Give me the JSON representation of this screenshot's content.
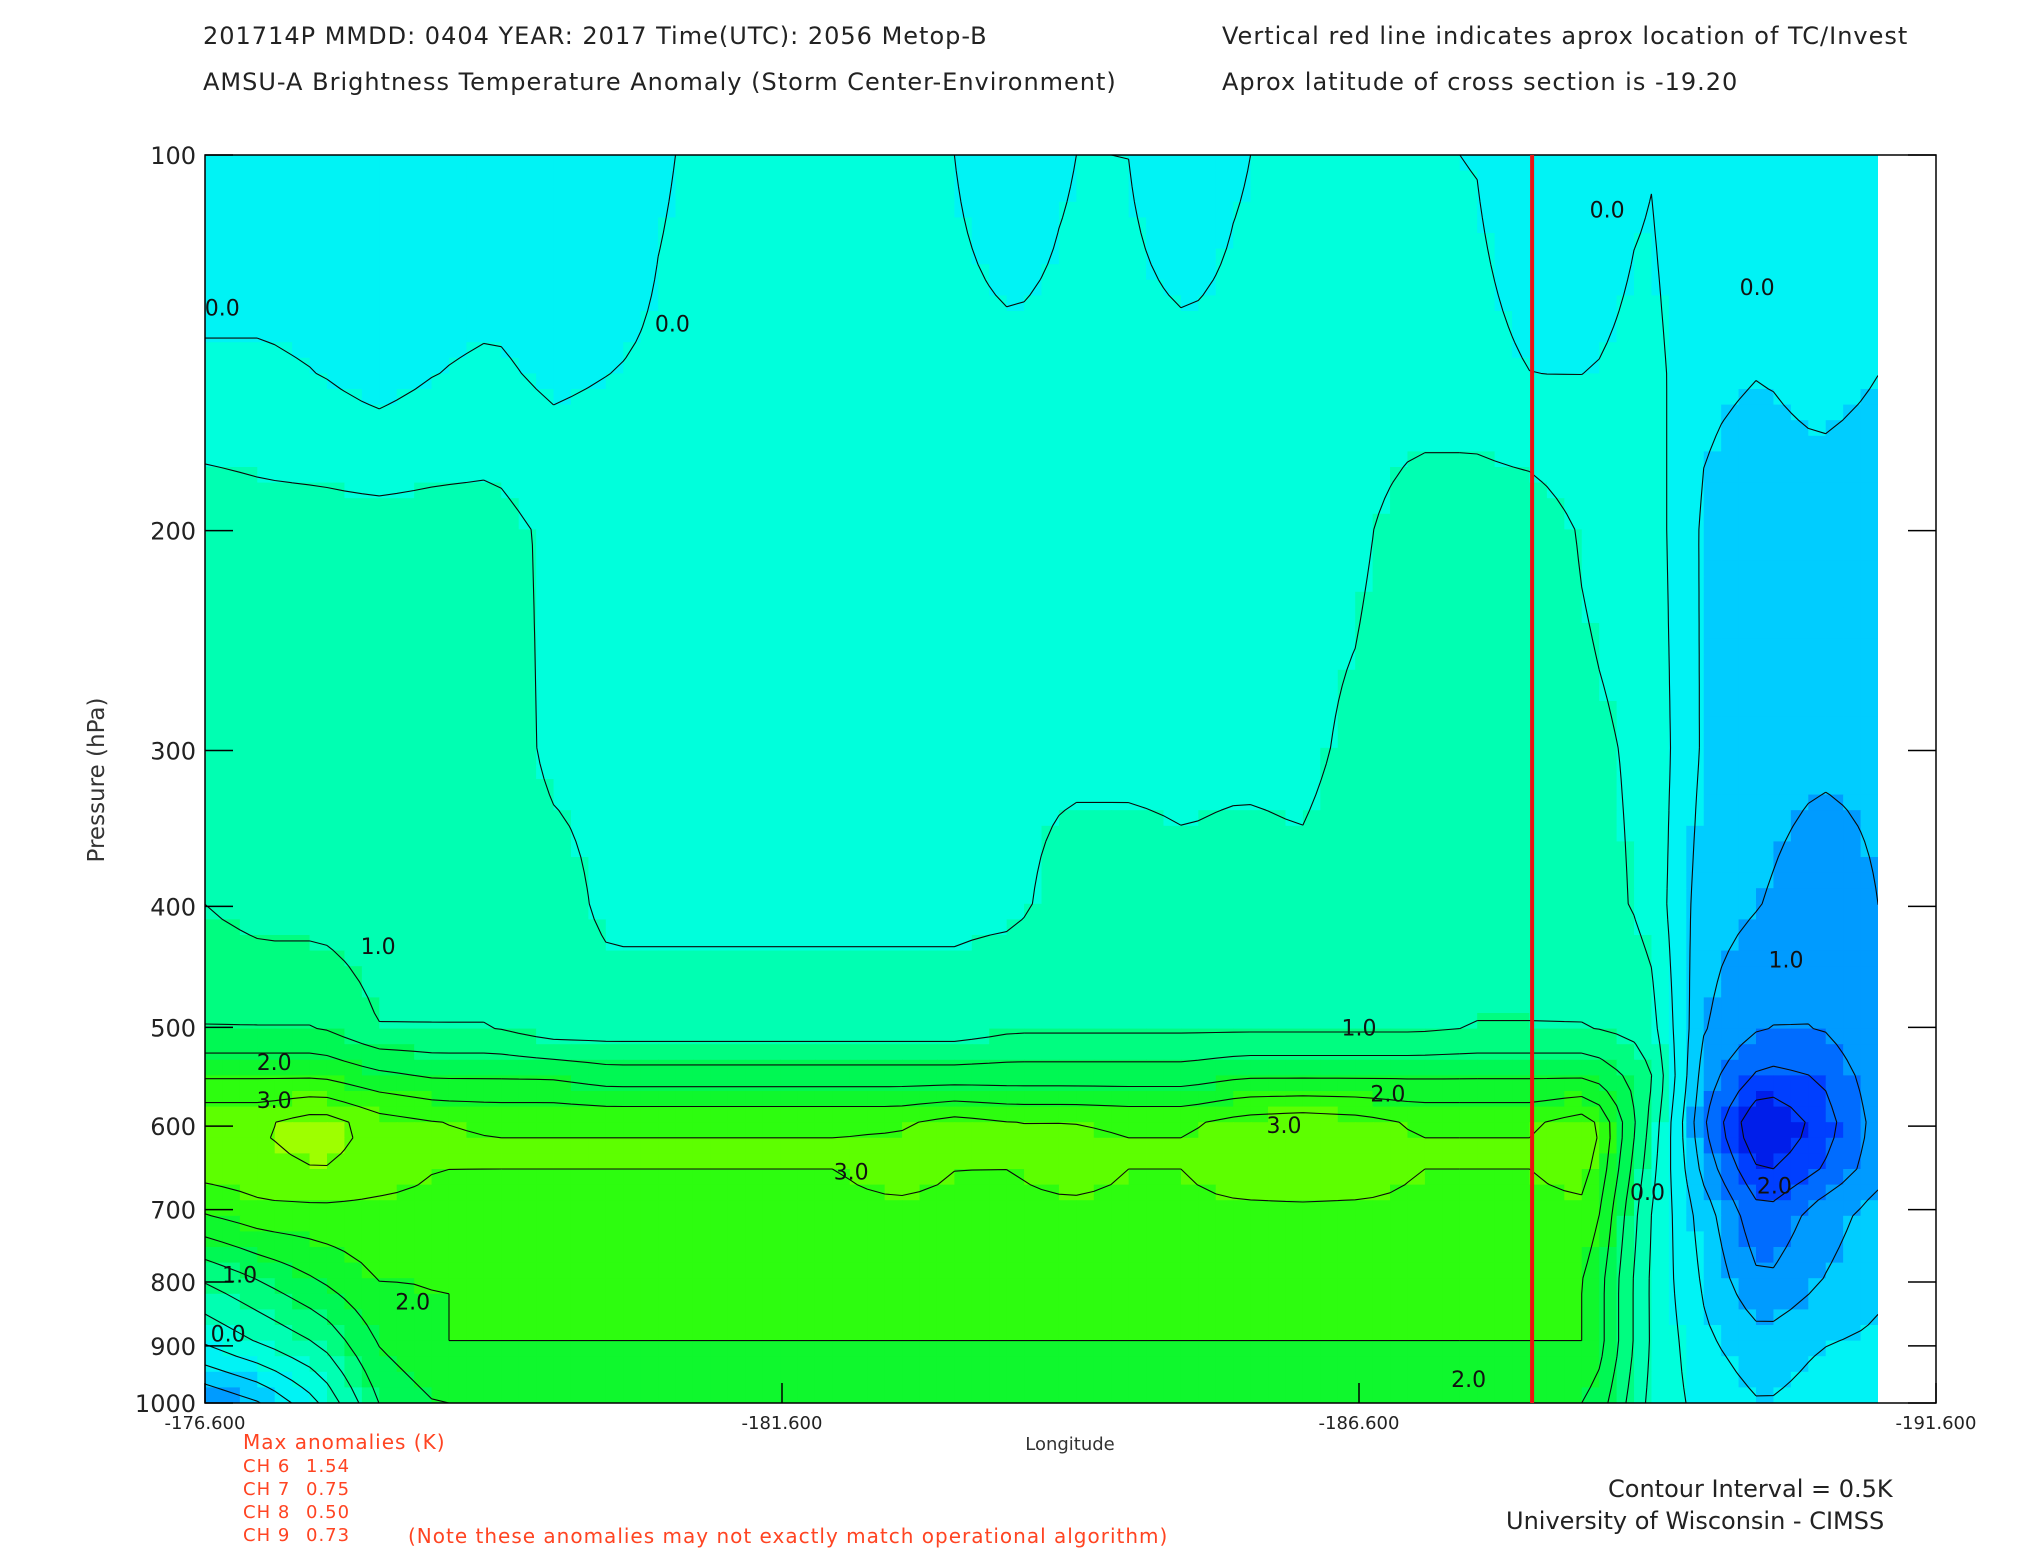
{
  "header": {
    "line1_left": "201714P  MMDD: 0404  YEAR: 2017  Time(UTC): 2056  Metop-B",
    "line1_right": "Vertical red line indicates aprox location of TC/Invest",
    "line2_left": "AMSU-A Brightness Temperature Anomaly (Storm Center-Environment)",
    "line2_right": "Aprox latitude of cross section is -19.20"
  },
  "footer": {
    "contour_interval": "Contour Interval = 0.5K",
    "institution": "University of Wisconsin - CIMSS"
  },
  "anomalies": {
    "title": "Max anomalies (K)",
    "channels": [
      {
        "label": "CH 6",
        "value": "1.54"
      },
      {
        "label": "CH 7",
        "value": "0.75"
      },
      {
        "label": "CH 8",
        "value": "0.50"
      },
      {
        "label": "CH 9",
        "value": "0.73"
      }
    ],
    "note": "(Note these anomalies may not exactly match operational algorithm)"
  },
  "colors": {
    "text": "#222222",
    "annotation": "#ff4422",
    "storm_line": "#ee1111"
  },
  "chart_data": {
    "type": "heatmap",
    "title": "AMSU-A Brightness Temperature Anomaly (Storm Center-Environment)",
    "xlabel": "Longitude",
    "ylabel": "Pressure (hPa)",
    "x_ticks": [
      -176.6,
      -181.6,
      -186.6,
      -191.6
    ],
    "x_tick_labels": [
      "-176.600",
      "-181.600",
      "-186.600",
      "-191.600"
    ],
    "xlim": [
      -176.6,
      -191.6
    ],
    "y_ticks": [
      100,
      200,
      300,
      400,
      500,
      600,
      700,
      800,
      900,
      1000
    ],
    "y_tick_labels": [
      "100",
      "200",
      "300",
      "400",
      "500",
      "600",
      "700",
      "800",
      "900",
      "1000"
    ],
    "ylim": [
      1000,
      100
    ],
    "y_scale": "log",
    "data_xlim": [
      -176.6,
      -191.1
    ],
    "storm_longitude": -188.1,
    "contour_interval": 0.5,
    "contour_labels": [
      {
        "text": "0.0",
        "lon": -176.75,
        "p": 133
      },
      {
        "text": "0.0",
        "lon": -180.65,
        "p": 137
      },
      {
        "text": "0.0",
        "lon": -188.75,
        "p": 111
      },
      {
        "text": "0.0",
        "lon": -190.05,
        "p": 128
      },
      {
        "text": "1.0",
        "lon": -178.1,
        "p": 432
      },
      {
        "text": "1.0",
        "lon": -186.6,
        "p": 502
      },
      {
        "text": "1.0",
        "lon": -190.3,
        "p": 443
      },
      {
        "text": "1.0",
        "lon": -176.9,
        "p": 792
      },
      {
        "text": "2.0",
        "lon": -177.2,
        "p": 535
      },
      {
        "text": "2.0",
        "lon": -186.85,
        "p": 567
      },
      {
        "text": "2.0",
        "lon": -187.55,
        "p": 960
      },
      {
        "text": "2.0",
        "lon": -178.4,
        "p": 832
      },
      {
        "text": "2.0",
        "lon": -190.2,
        "p": 672
      },
      {
        "text": "3.0",
        "lon": -177.2,
        "p": 574
      },
      {
        "text": "3.0",
        "lon": -185.95,
        "p": 601
      },
      {
        "text": "3.0",
        "lon": -182.2,
        "p": 655
      },
      {
        "text": "0.0",
        "lon": -176.8,
        "p": 883
      },
      {
        "text": "0.0",
        "lon": -189.1,
        "p": 680
      }
    ],
    "anomaly_grid": {
      "lon": [
        -176.6,
        -177.1,
        -177.6,
        -178.1,
        -178.6,
        -179.1,
        -179.6,
        -180.1,
        -180.6,
        -181.1,
        -181.6,
        -182.1,
        -182.6,
        -183.1,
        -183.6,
        -184.1,
        -184.6,
        -185.1,
        -185.6,
        -186.1,
        -186.6,
        -187.1,
        -187.6,
        -188.1,
        -188.6,
        -189.1,
        -189.6,
        -190.1,
        -190.6,
        -191.1
      ],
      "pressure": [
        100,
        150,
        200,
        300,
        400,
        500,
        550,
        600,
        650,
        700,
        800,
        900,
        1000
      ],
      "values": [
        [
          -0.5,
          -0.5,
          -0.5,
          -0.5,
          -0.5,
          -0.5,
          -0.5,
          -0.5,
          0.0,
          0.0,
          0.0,
          0.0,
          0.0,
          0.0,
          -0.5,
          0.0,
          0.0,
          -0.5,
          0.0,
          0.0,
          0.0,
          0.0,
          0.0,
          -0.5,
          -0.5,
          0.0,
          -0.5,
          -0.5,
          -0.5,
          0.0
        ],
        [
          0.1,
          0.1,
          0.0,
          -0.2,
          0.0,
          0.1,
          -0.1,
          0.0,
          0.1,
          0.2,
          0.2,
          0.2,
          0.2,
          0.2,
          0.2,
          0.2,
          0.2,
          0.2,
          0.2,
          0.2,
          0.2,
          0.2,
          0.2,
          0.0,
          0.0,
          0.2,
          -0.4,
          -0.5,
          -0.3,
          -0.5
        ],
        [
          0.8,
          0.7,
          0.7,
          0.7,
          0.7,
          0.7,
          0.4,
          0.4,
          0.4,
          0.4,
          0.4,
          0.4,
          0.4,
          0.4,
          0.4,
          0.4,
          0.4,
          0.4,
          0.4,
          0.4,
          0.4,
          0.8,
          0.8,
          0.8,
          0.4,
          0.3,
          -0.6,
          -0.8,
          -0.8,
          -0.8
        ],
        [
          0.9,
          0.8,
          0.8,
          0.8,
          0.8,
          0.8,
          0.4,
          0.4,
          0.4,
          0.4,
          0.4,
          0.4,
          0.4,
          0.4,
          0.4,
          0.4,
          0.4,
          0.4,
          0.4,
          0.4,
          0.6,
          0.8,
          0.8,
          0.8,
          0.6,
          0.4,
          -0.6,
          -0.8,
          -0.9,
          -0.9
        ],
        [
          1.0,
          0.8,
          0.8,
          0.7,
          0.7,
          0.7,
          0.7,
          0.4,
          0.4,
          0.4,
          0.4,
          0.4,
          0.4,
          0.4,
          0.4,
          0.7,
          0.7,
          0.6,
          0.7,
          0.6,
          0.7,
          0.7,
          0.8,
          0.8,
          0.7,
          0.4,
          -0.8,
          -1.0,
          -1.3,
          -1.0
        ],
        [
          1.5,
          1.5,
          1.5,
          1.0,
          1.0,
          1.0,
          0.7,
          0.7,
          0.7,
          0.7,
          0.7,
          0.7,
          0.7,
          0.7,
          0.9,
          0.9,
          0.9,
          0.9,
          0.9,
          0.9,
          0.9,
          0.9,
          1.0,
          1.0,
          1.0,
          0.8,
          -1.0,
          -1.5,
          -1.5,
          -1.0
        ],
        [
          2.5,
          2.5,
          2.5,
          2.2,
          2.0,
          2.0,
          2.0,
          1.8,
          1.8,
          1.8,
          1.8,
          1.8,
          1.8,
          1.8,
          1.8,
          1.8,
          1.8,
          1.8,
          2.0,
          2.0,
          2.0,
          2.0,
          2.0,
          2.0,
          2.0,
          1.2,
          -1.3,
          -2.2,
          -2.0,
          -1.2
        ],
        [
          3.5,
          3.5,
          3.9,
          3.3,
          3.1,
          3.0,
          3.0,
          3.0,
          3.0,
          3.0,
          3.0,
          3.0,
          3.0,
          3.3,
          3.1,
          3.1,
          3.0,
          3.0,
          3.3,
          3.4,
          3.3,
          3.0,
          3.0,
          3.0,
          3.4,
          1.0,
          -1.5,
          -3.2,
          -2.3,
          -1.3
        ],
        [
          3.2,
          3.3,
          3.5,
          3.2,
          3.0,
          3.0,
          3.0,
          3.0,
          3.0,
          3.0,
          3.0,
          3.0,
          3.2,
          3.0,
          3.0,
          3.2,
          3.0,
          3.0,
          3.3,
          3.4,
          3.3,
          3.0,
          3.0,
          3.0,
          3.2,
          0.8,
          -1.2,
          -2.6,
          -2.0,
          -1.2
        ],
        [
          2.6,
          2.9,
          2.9,
          2.9,
          2.9,
          2.9,
          2.9,
          2.9,
          2.9,
          2.9,
          2.9,
          2.9,
          2.9,
          2.9,
          2.9,
          2.9,
          2.9,
          2.9,
          2.9,
          2.9,
          2.9,
          2.9,
          2.9,
          2.9,
          2.9,
          0.6,
          -0.8,
          -2.0,
          -1.3,
          -0.8
        ],
        [
          1.0,
          1.5,
          2.0,
          2.5,
          2.5,
          2.5,
          2.5,
          2.5,
          2.5,
          2.5,
          2.5,
          2.5,
          2.5,
          2.5,
          2.5,
          2.5,
          2.5,
          2.5,
          2.5,
          2.5,
          2.5,
          2.5,
          2.5,
          2.5,
          2.5,
          0.5,
          -0.6,
          -1.5,
          -1.0,
          -0.6
        ],
        [
          0.0,
          0.5,
          1.0,
          2.0,
          2.5,
          2.5,
          2.5,
          2.5,
          2.5,
          2.5,
          2.5,
          2.5,
          2.5,
          2.5,
          2.5,
          2.5,
          2.5,
          2.5,
          2.5,
          2.5,
          2.5,
          2.5,
          2.5,
          2.5,
          2.5,
          0.5,
          -0.4,
          -0.8,
          -0.5,
          -0.4
        ],
        [
          -1.5,
          -1.0,
          0.0,
          1.5,
          2.0,
          2.0,
          2.0,
          2.0,
          2.0,
          2.0,
          2.0,
          2.0,
          2.0,
          2.0,
          2.0,
          2.0,
          2.0,
          2.0,
          2.0,
          2.2,
          2.2,
          2.2,
          2.0,
          2.0,
          2.0,
          0.4,
          -0.2,
          -0.5,
          -0.3,
          -0.2
        ]
      ]
    },
    "grid": false,
    "legend": "none"
  }
}
